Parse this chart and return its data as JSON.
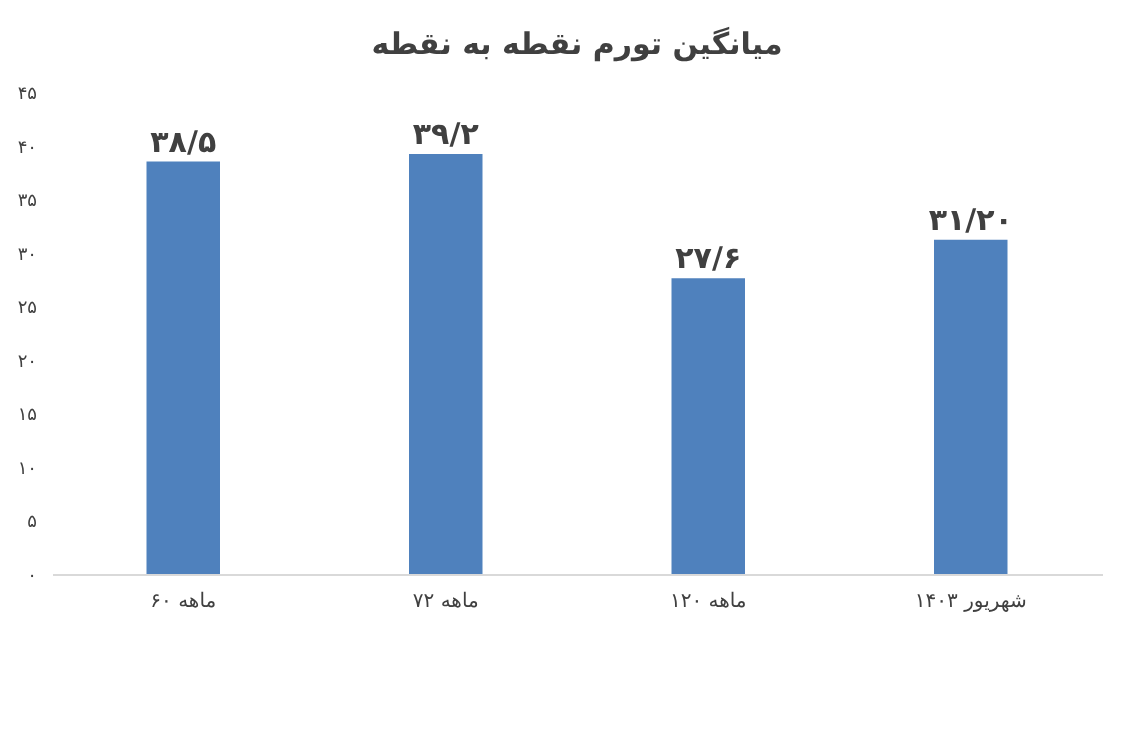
{
  "chart_data": {
    "type": "bar",
    "title": "میانگین تورم نقطه به نقطه",
    "categories": [
      "۶۰ ماهه",
      "۷۲ ماهه",
      "۱۲۰ ماهه",
      "شهریور ۱۴۰۳"
    ],
    "values": [
      38.5,
      39.2,
      27.6,
      31.2
    ],
    "value_labels": [
      "۳۸/۵",
      "۳۹/۲",
      "۲۷/۶",
      "۳۱/۲۰"
    ],
    "color": "#4f81bd",
    "ylim": [
      0,
      45
    ],
    "yticks": [
      {
        "value": 0,
        "label": "۰"
      },
      {
        "value": 5,
        "label": "۵"
      },
      {
        "value": 10,
        "label": "۱۰"
      },
      {
        "value": 15,
        "label": "۱۵"
      },
      {
        "value": 20,
        "label": "۲۰"
      },
      {
        "value": 25,
        "label": "۲۵"
      },
      {
        "value": 30,
        "label": "۳۰"
      },
      {
        "value": 35,
        "label": "۳۵"
      },
      {
        "value": 40,
        "label": "۴۰"
      },
      {
        "value": 45,
        "label": "۴۵"
      }
    ],
    "grid": false
  }
}
